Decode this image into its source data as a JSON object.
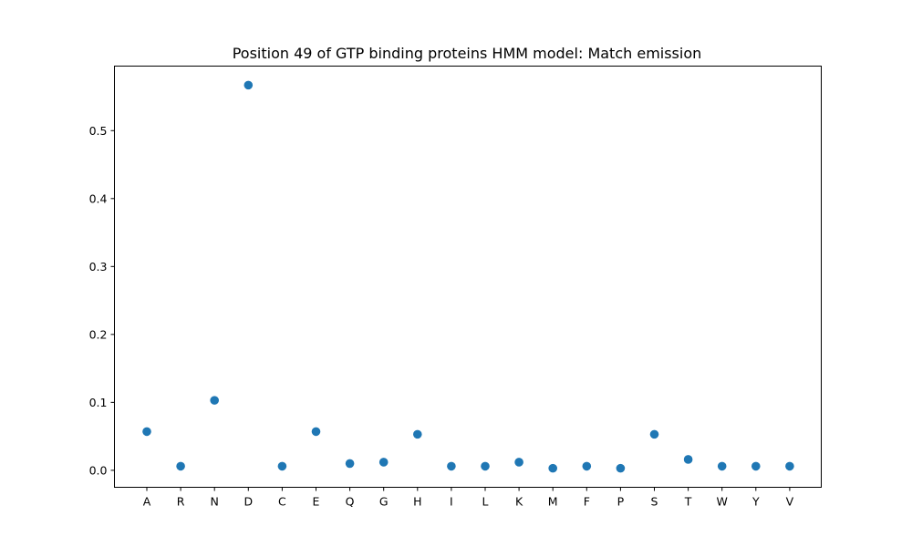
{
  "chart_data": {
    "type": "scatter",
    "title": "Position 49 of GTP binding proteins HMM model: Match emission",
    "xlabel": "",
    "ylabel": "",
    "categories": [
      "A",
      "R",
      "N",
      "D",
      "C",
      "E",
      "Q",
      "G",
      "H",
      "I",
      "L",
      "K",
      "M",
      "F",
      "P",
      "S",
      "T",
      "W",
      "Y",
      "V"
    ],
    "values": [
      0.057,
      0.006,
      0.103,
      0.567,
      0.006,
      0.057,
      0.01,
      0.012,
      0.053,
      0.006,
      0.006,
      0.012,
      0.003,
      0.006,
      0.003,
      0.053,
      0.016,
      0.006,
      0.006,
      0.006
    ],
    "yticks": [
      "0.0",
      "0.1",
      "0.2",
      "0.3",
      "0.4",
      "0.5"
    ],
    "ylim": [
      -0.025,
      0.595
    ],
    "grid": false,
    "point_color": "#1f77b4"
  }
}
